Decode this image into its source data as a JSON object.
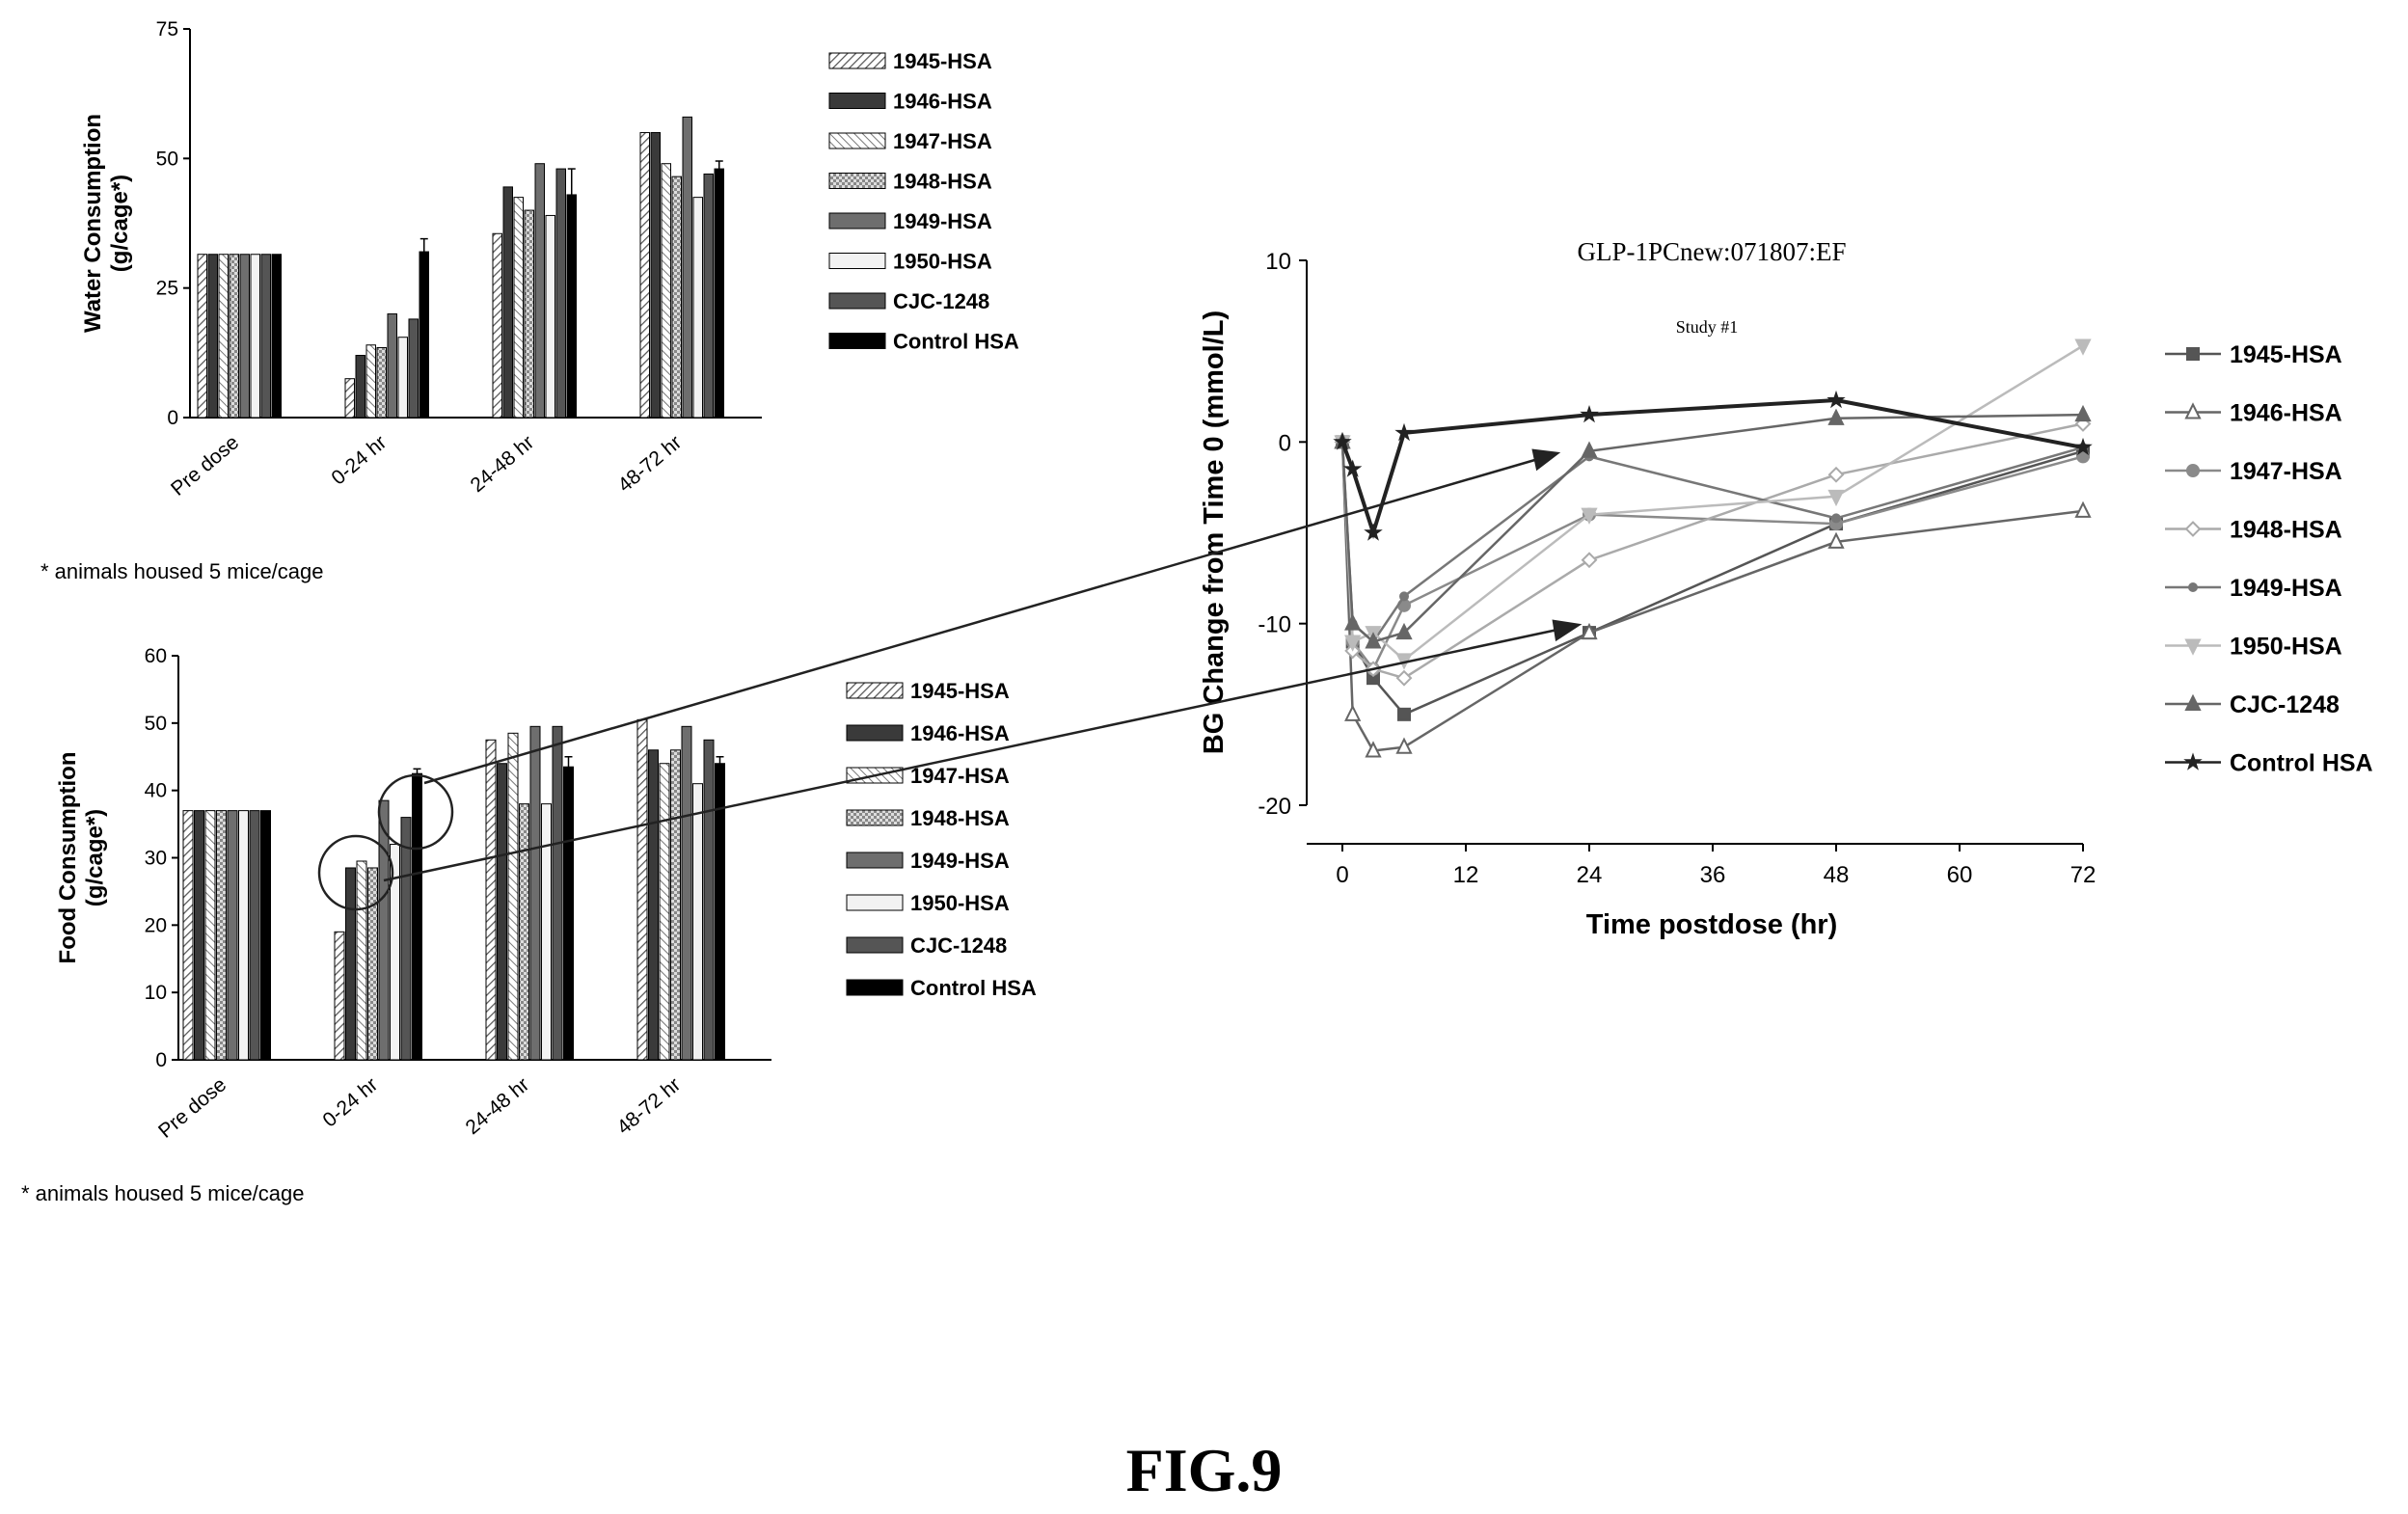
{
  "figure_label": "FIG.9",
  "chart_data": [
    {
      "type": "bar",
      "ylabel": "Water Consumption\n(g/cage*)",
      "ylim": [
        0,
        75
      ],
      "yticks": [
        0,
        25,
        50,
        75
      ],
      "categories": [
        "Pre dose",
        "0-24 hr",
        "24-48 hr",
        "48-72 hr"
      ],
      "series": [
        {
          "name": "1945-HSA",
          "values": [
            31.5,
            7.5,
            35.5,
            55
          ],
          "err": [
            0,
            0,
            0,
            0
          ]
        },
        {
          "name": "1946-HSA",
          "values": [
            31.5,
            12,
            44.5,
            55
          ],
          "err": [
            0,
            0,
            0,
            0
          ]
        },
        {
          "name": "1947-HSA",
          "values": [
            31.5,
            14,
            42.5,
            49
          ],
          "err": [
            0,
            0,
            0,
            0
          ]
        },
        {
          "name": "1948-HSA",
          "values": [
            31.5,
            13.5,
            40,
            46.5
          ],
          "err": [
            0,
            0,
            0,
            0
          ]
        },
        {
          "name": "1949-HSA",
          "values": [
            31.5,
            20,
            49,
            58
          ],
          "err": [
            0,
            0,
            0,
            0
          ]
        },
        {
          "name": "1950-HSA",
          "values": [
            31.5,
            15.5,
            39,
            42.5
          ],
          "err": [
            0,
            0,
            0,
            0
          ]
        },
        {
          "name": "CJC-1248",
          "values": [
            31.5,
            19,
            48,
            47
          ],
          "err": [
            0,
            0,
            0,
            0
          ]
        },
        {
          "name": "Control HSA",
          "values": [
            31.5,
            32,
            43,
            48
          ],
          "err": [
            0,
            2.5,
            5,
            1.5
          ]
        }
      ],
      "footnote": "* animals housed 5 mice/cage"
    },
    {
      "type": "bar",
      "ylabel": "Food Consumption\n(g/cage*)",
      "ylim": [
        0,
        60
      ],
      "yticks": [
        0,
        10,
        20,
        30,
        40,
        50,
        60
      ],
      "categories": [
        "Pre dose",
        "0-24 hr",
        "24-48 hr",
        "48-72 hr"
      ],
      "series": [
        {
          "name": "1945-HSA",
          "values": [
            37,
            19,
            47.5,
            50.5
          ],
          "err": [
            0,
            0,
            0,
            0
          ]
        },
        {
          "name": "1946-HSA",
          "values": [
            37,
            28.5,
            44,
            46
          ],
          "err": [
            0,
            0,
            0,
            0
          ]
        },
        {
          "name": "1947-HSA",
          "values": [
            37,
            29.5,
            48.5,
            44
          ],
          "err": [
            0,
            0,
            0,
            0
          ]
        },
        {
          "name": "1948-HSA",
          "values": [
            37,
            28.5,
            38,
            46
          ],
          "err": [
            0,
            0,
            0,
            0
          ]
        },
        {
          "name": "1949-HSA",
          "values": [
            37,
            38.5,
            49.5,
            49.5
          ],
          "err": [
            0,
            0,
            0,
            0
          ]
        },
        {
          "name": "1950-HSA",
          "values": [
            37,
            32,
            38,
            41
          ],
          "err": [
            0,
            0,
            0,
            0
          ]
        },
        {
          "name": "CJC-1248",
          "values": [
            37,
            36,
            49.5,
            47.5
          ],
          "err": [
            0,
            0,
            0,
            0
          ]
        },
        {
          "name": "Control HSA",
          "values": [
            37,
            42.5,
            43.5,
            44
          ],
          "err": [
            0,
            0.7,
            1.5,
            1
          ]
        }
      ],
      "footnote": "* animals housed 5 mice/cage"
    },
    {
      "type": "line",
      "title": "GLP-1PCnew:071807:EF",
      "subtitle": "Study #1",
      "xlabel": "Time postdose (hr)",
      "ylabel": "BG Change from Time 0 (mmol/L)",
      "xlim": [
        0,
        72
      ],
      "ylim": [
        -20,
        10
      ],
      "xticks": [
        0,
        12,
        24,
        36,
        48,
        60,
        72
      ],
      "yticks": [
        -20,
        -10,
        0,
        10
      ],
      "x": [
        0,
        1,
        3,
        6,
        24,
        48,
        72
      ],
      "series": [
        {
          "name": "1945-HSA",
          "marker": "square",
          "color": "#555555",
          "values": [
            0,
            -11,
            -13,
            -15,
            -10.5,
            -4.5,
            -0.5
          ]
        },
        {
          "name": "1946-HSA",
          "marker": "triangle-open",
          "color": "#666666",
          "values": [
            0,
            -15,
            -17,
            -16.8,
            -10.5,
            -5.5,
            -3.8
          ]
        },
        {
          "name": "1947-HSA",
          "marker": "circle",
          "color": "#8a8a8a",
          "values": [
            0,
            -11,
            -12.5,
            -9,
            -4,
            -4.5,
            -0.8
          ]
        },
        {
          "name": "1948-HSA",
          "marker": "diamond-open",
          "color": "#aaaaaa",
          "values": [
            0,
            -11.5,
            -12.5,
            -13,
            -6.5,
            -1.8,
            1.0
          ]
        },
        {
          "name": "1949-HSA",
          "marker": "dot",
          "color": "#777777",
          "values": [
            0,
            -10,
            -11,
            -8.5,
            -0.8,
            -4.2,
            -0.3
          ]
        },
        {
          "name": "1950-HSA",
          "marker": "down-triangle",
          "color": "#bbbbbb",
          "values": [
            0,
            -11,
            -10.5,
            -12,
            -4,
            -3,
            5.3
          ]
        },
        {
          "name": "CJC-1248",
          "marker": "triangle",
          "color": "#666666",
          "values": [
            0,
            -10,
            -11,
            -10.5,
            -0.5,
            1.3,
            1.5
          ]
        },
        {
          "name": "Control HSA",
          "marker": "star",
          "color": "#222222",
          "values": [
            0,
            -1.5,
            -5,
            0.5,
            1.5,
            2.3,
            -0.3
          ]
        }
      ]
    }
  ]
}
